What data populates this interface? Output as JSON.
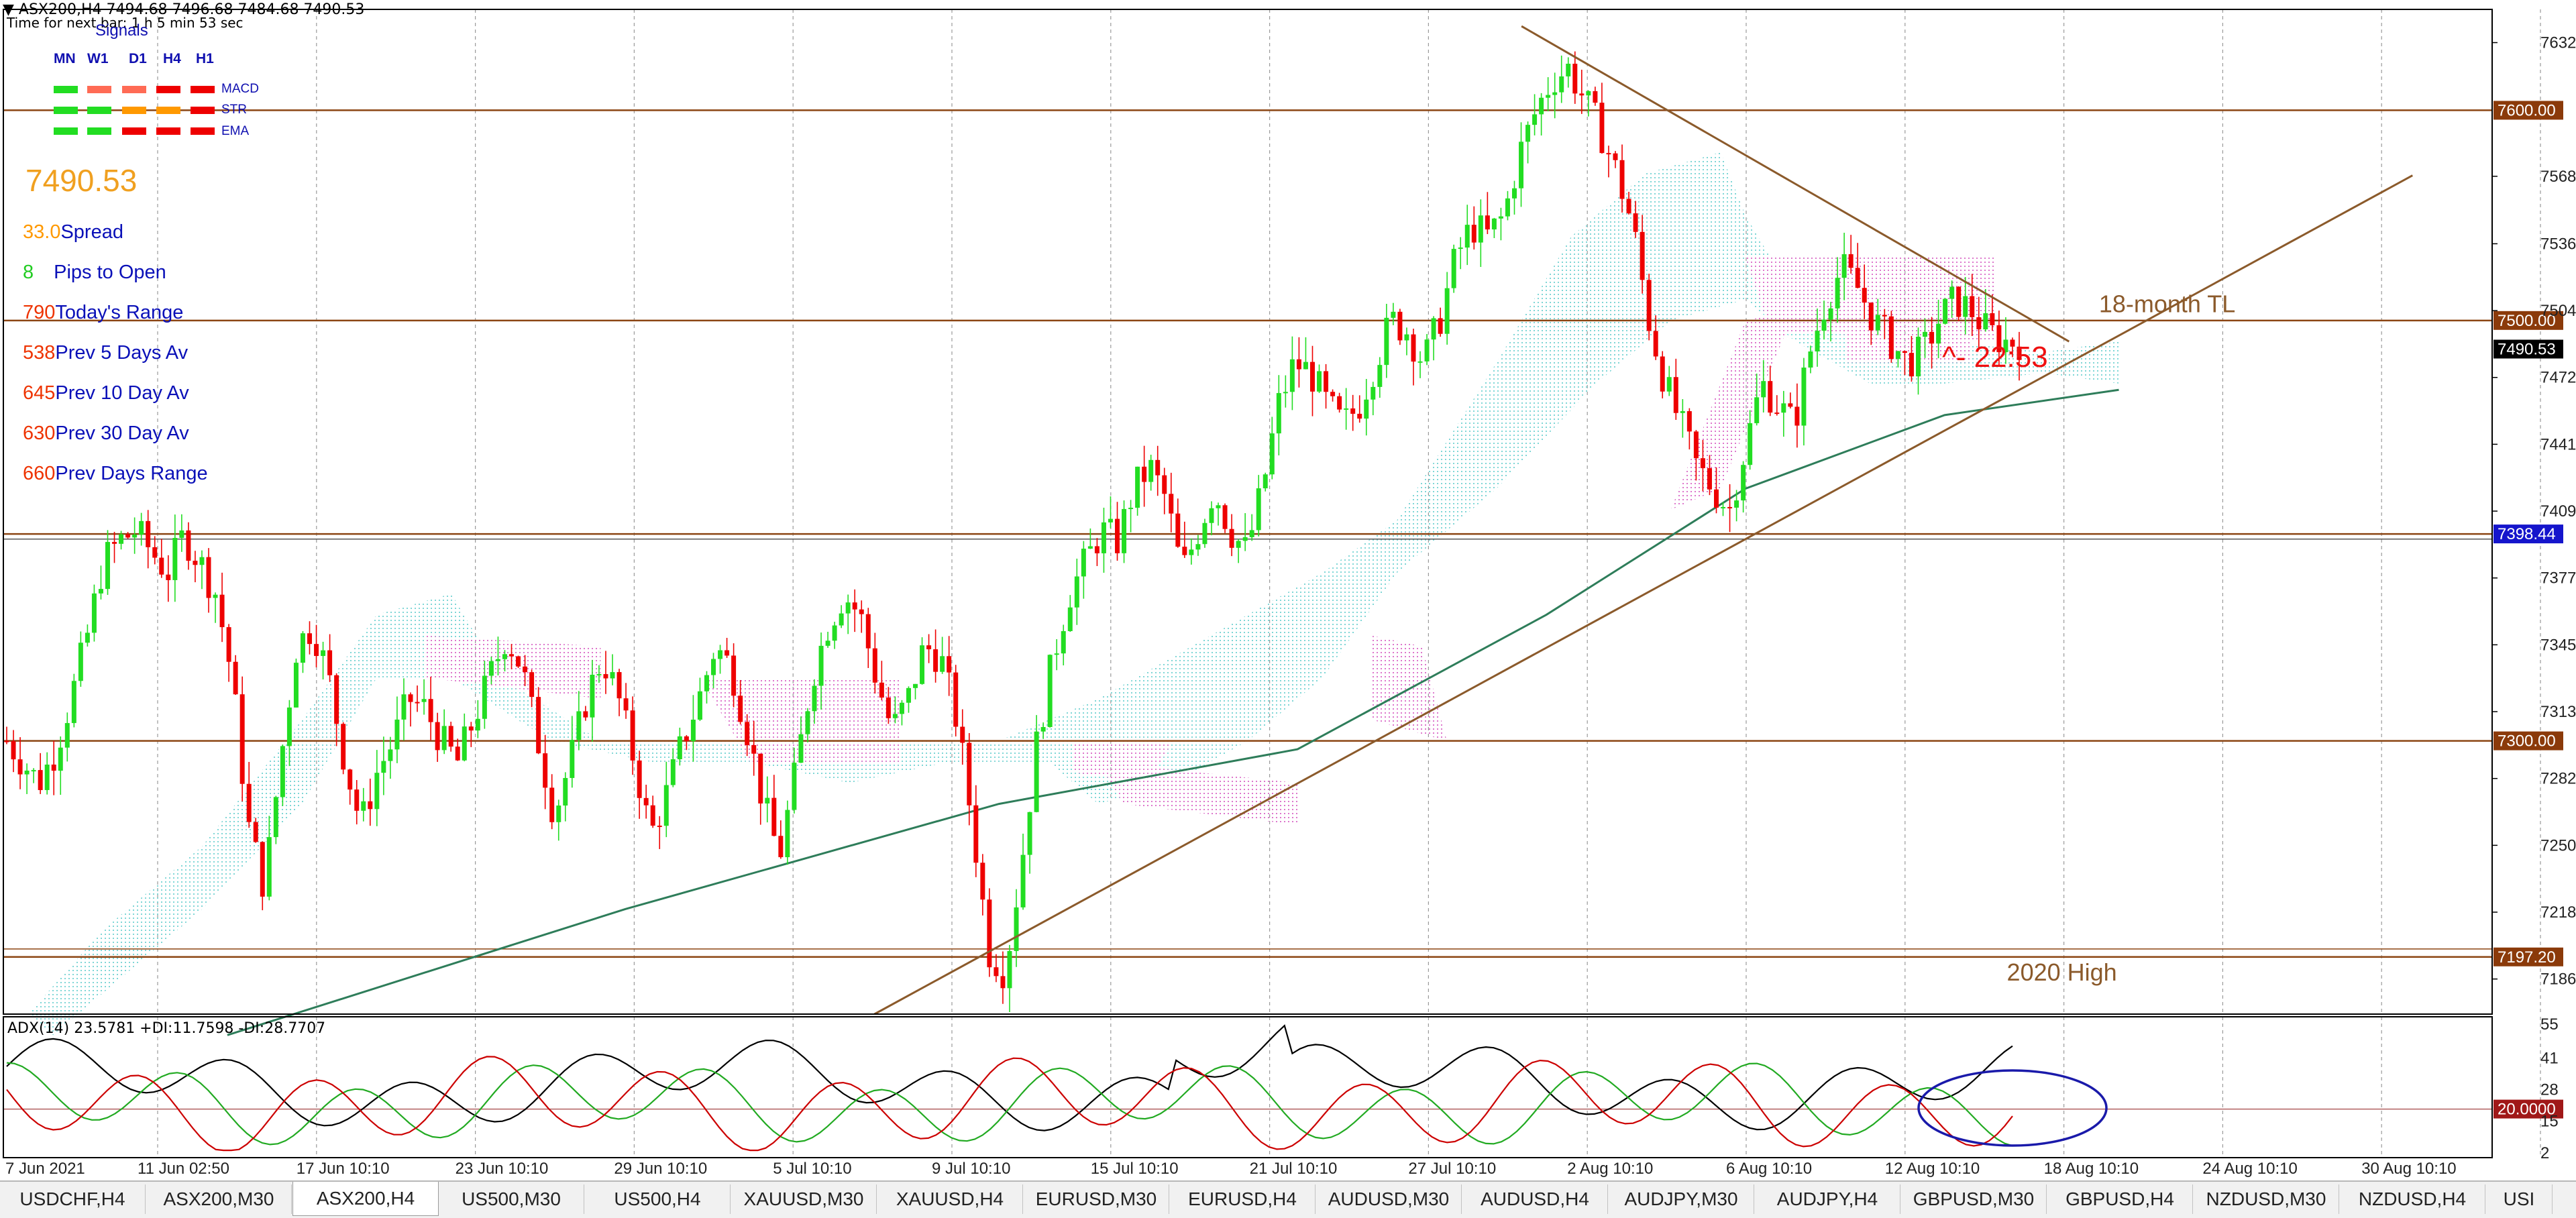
{
  "header": {
    "symbol_line": "ASX200,H4  7494.68 7496.68 7484.68 7490.53",
    "next_bar": "Time for next bar: 1 h 5 min 53 sec"
  },
  "signals": {
    "title": "Signals",
    "timeframes": [
      "MN",
      "W1",
      "D1",
      "H4",
      "H1"
    ],
    "rows": [
      {
        "label": "MACD",
        "colors": [
          "#22dd22",
          "#ff6b55",
          "#ff6b55",
          "#ee0000",
          "#ee0000"
        ]
      },
      {
        "label": "STR",
        "colors": [
          "#22dd22",
          "#22dd22",
          "#ff9900",
          "#ff9900",
          "#ee0000"
        ]
      },
      {
        "label": "EMA",
        "colors": [
          "#22dd22",
          "#22dd22",
          "#ee0000",
          "#ee0000",
          "#ee0000"
        ]
      }
    ]
  },
  "info_panel": {
    "price": "7490.53",
    "rows": [
      {
        "value": "33.0",
        "label": "Spread",
        "color": "#ff9900"
      },
      {
        "value": "8",
        "label": "Pips to Open",
        "color": "#22cc22"
      },
      {
        "value": "790",
        "label": "Today's Range",
        "color": "#ee3300"
      },
      {
        "value": "538",
        "label": "Prev 5 Days Av",
        "color": "#ee3300"
      },
      {
        "value": "645",
        "label": "Prev 10 Day Av",
        "color": "#ee3300"
      },
      {
        "value": "630",
        "label": "Prev 30 Day Av",
        "color": "#ee3300"
      },
      {
        "value": "660",
        "label": "Prev Days Range",
        "color": "#ee3300"
      }
    ]
  },
  "chart_data": [
    {
      "type": "candlestick",
      "symbol": "ASX200",
      "timeframe": "H4",
      "ylim": [
        7170,
        7648
      ],
      "y_ticks": [
        "7632.20",
        "7568.60",
        "7536.50",
        "7504.70",
        "7472.90",
        "7441.10",
        "7409.30",
        "7377.50",
        "7345.70",
        "7313.90",
        "7282.10",
        "7250.30",
        "7218.50",
        "7186.70"
      ],
      "x_ticks": [
        "7 Jun 2021",
        "11 Jun 02:50",
        "17 Jun 10:10",
        "23 Jun 10:10",
        "29 Jun 10:10",
        "5 Jul 10:10",
        "9 Jul 10:10",
        "15 Jul 10:10",
        "21 Jul 10:10",
        "27 Jul 10:10",
        "2 Aug 10:10",
        "6 Aug 10:10",
        "12 Aug 10:10",
        "18 Aug 10:10",
        "24 Aug 10:10",
        "30 Aug 10:10"
      ],
      "close_path": [
        7300,
        7290,
        7280,
        7295,
        7320,
        7350,
        7385,
        7395,
        7400,
        7390,
        7380,
        7398,
        7385,
        7370,
        7330,
        7260,
        7230,
        7290,
        7345,
        7355,
        7330,
        7290,
        7260,
        7285,
        7300,
        7320,
        7315,
        7300,
        7290,
        7310,
        7330,
        7350,
        7335,
        7300,
        7265,
        7290,
        7320,
        7340,
        7320,
        7290,
        7255,
        7275,
        7300,
        7320,
        7345,
        7335,
        7305,
        7270,
        7245,
        7285,
        7330,
        7355,
        7370,
        7360,
        7330,
        7305,
        7320,
        7345,
        7340,
        7310,
        7260,
        7200,
        7190,
        7240,
        7300,
        7340,
        7370,
        7385,
        7400,
        7395,
        7420,
        7430,
        7415,
        7380,
        7400,
        7420,
        7400,
        7390,
        7420,
        7460,
        7480,
        7475,
        7460,
        7450,
        7460,
        7480,
        7500,
        7495,
        7480,
        7500,
        7530,
        7545,
        7540,
        7550,
        7580,
        7600,
        7615,
        7620,
        7605,
        7590,
        7570,
        7545,
        7500,
        7470,
        7450,
        7430,
        7420,
        7410,
        7440,
        7470,
        7460,
        7450,
        7485,
        7510,
        7525,
        7515,
        7500,
        7490,
        7480,
        7485,
        7500,
        7510,
        7505,
        7495,
        7490,
        7490
      ],
      "price_levels": [
        {
          "value": 7600.0,
          "label": "7600.00"
        },
        {
          "value": 7500.0,
          "label": "7500.00"
        },
        {
          "value": 7398.44,
          "label": "7398.44"
        },
        {
          "value": 7300.0,
          "label": "7300.00"
        },
        {
          "value": 7197.2,
          "label": "7197.20"
        }
      ],
      "current_price": {
        "value": 7490.53,
        "label": "7490.53"
      },
      "ema": {
        "x": [
          0.09,
          0.25,
          0.4,
          0.52,
          0.62,
          0.7,
          0.78,
          0.85
        ],
        "y": [
          7160,
          7220,
          7270,
          7296,
          7360,
          7420,
          7455,
          7467
        ]
      },
      "trendlines": [
        {
          "name": "descending",
          "from": [
            0.61,
            7640
          ],
          "to": [
            0.83,
            7490
          ]
        },
        {
          "name": "ascending",
          "from": [
            0.35,
            7170
          ],
          "to": [
            0.968,
            7569
          ]
        }
      ],
      "annotations": [
        {
          "text": "18-month TL",
          "x": 0.842,
          "y": 7504
        },
        {
          "text": "2020 High",
          "x": 0.805,
          "y": 7186
        },
        {
          "text": "^- 22:53",
          "x": 0.779,
          "y": 7478
        }
      ],
      "colors": {
        "bull": "#22dd22",
        "bear": "#ee0000",
        "level": "#8b4513",
        "trendline": "#8b5a2b",
        "ema": "#2e7d5a",
        "kumo_bull": "#7fd6d6",
        "kumo_bear": "#dd77cc"
      }
    },
    {
      "type": "line",
      "indicator": "ADX(14)",
      "label": "ADX(14) 23.5781 +DI:11.7598 -DI:28.7707",
      "adx": 23.5781,
      "plus_di": 11.7598,
      "minus_di": 28.7707,
      "ylim": [
        0,
        58
      ],
      "y_ticks": [
        "55",
        "41",
        "28",
        "15",
        "2"
      ],
      "level": {
        "value": 20,
        "label": "20.0000"
      },
      "series": [
        {
          "name": "ADX",
          "color": "#000000"
        },
        {
          "name": "+DI",
          "color": "#22aa22"
        },
        {
          "name": "-DI",
          "color": "#cc0000"
        }
      ],
      "highlight": "ellipse around latest values"
    }
  ],
  "tabs": [
    "USDCHF,H4",
    "ASX200,M30",
    "ASX200,H4",
    "US500,M30",
    "US500,H4",
    "XAUUSD,M30",
    "XAUUSD,H4",
    "EURUSD,M30",
    "EURUSD,H4",
    "AUDUSD,M30",
    "AUDUSD,H4",
    "AUDJPY,M30",
    "AUDJPY,H4",
    "GBPUSD,M30",
    "GBPUSD,H4",
    "NZDUSD,M30",
    "NZDUSD,H4",
    "USI"
  ],
  "active_tab": "ASX200,H4"
}
